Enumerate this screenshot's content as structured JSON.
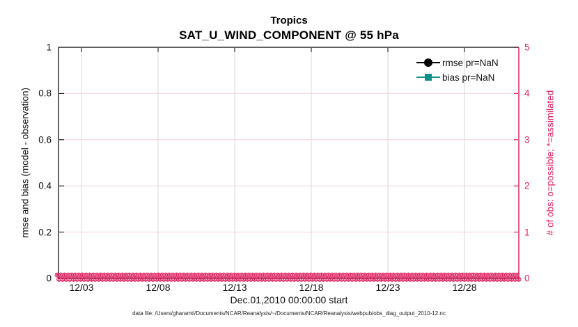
{
  "colors": {
    "accent_pink": "#de2363",
    "grid_pink": "#f6d3e1",
    "grid_gray": "#d8d8d8",
    "rmse_black": "#000000",
    "bias_teal": "#0f9088"
  },
  "title": {
    "line1": "Tropics",
    "line2": "SAT_U_WIND_COMPONENT @ 55 hPa"
  },
  "axes": {
    "left": {
      "label": "rmse and bias (model - observation)",
      "ticks": [
        "1",
        "0.8",
        "0.6",
        "0.4",
        "0.2",
        "0"
      ]
    },
    "right": {
      "label": "# of obs: o=possible; *=assimilated",
      "ticks": [
        "5",
        "4",
        "3",
        "2",
        "1",
        "0"
      ]
    },
    "x": {
      "ticks": [
        "12/03",
        "12/08",
        "12/13",
        "12/18",
        "12/23",
        "12/28"
      ],
      "label": "Dec.01,2010 00:00:00 start"
    }
  },
  "legend": {
    "items": [
      {
        "label": "rmse pr=NaN",
        "marker": "filled-circle",
        "color": "#000000"
      },
      {
        "label": "bias pr=NaN",
        "marker": "filled-square",
        "color": "#0f9088"
      }
    ]
  },
  "footer": {
    "data_file": "data file: /Users/gharamti/Documents/NCAR/Reanalysis/~/Documents/NCAR/Reanalysis/webpub/obs_diag_output_2010-12.nc"
  },
  "chart_data": {
    "type": "line",
    "title": "Tropics",
    "subtitle": "SAT_U_WIND_COMPONENT @ 55 hPa",
    "xlabel": "Dec.01,2010 00:00:00 start",
    "x_tick_labels": [
      "12/03",
      "12/08",
      "12/13",
      "12/18",
      "12/23",
      "12/28"
    ],
    "x_range": [
      "2010-12-01 00:00:00",
      "2010-12-31"
    ],
    "left_axis": {
      "label": "rmse and bias (model - observation)",
      "ylim": [
        0,
        1
      ],
      "tick_step": 0.2
    },
    "right_axis": {
      "label": "# of obs: o=possible; *=assimilated",
      "ylim": [
        0,
        5
      ],
      "tick_step": 1,
      "color": "#de2363"
    },
    "grid": true,
    "legend_position": "top-right-inside, no box",
    "series": [
      {
        "name": "rmse pr=NaN",
        "axis": "left",
        "marker": "filled-circle",
        "color": "#000000",
        "values": "all NaN - no line drawn"
      },
      {
        "name": "bias pr=NaN",
        "axis": "left",
        "marker": "filled-square",
        "color": "#0f9088",
        "values": "all NaN - no line drawn"
      },
      {
        "name": "# of obs possible (o)",
        "axis": "right",
        "marker": "o",
        "color": "#de2363",
        "constant_value": 0,
        "note": "dense markers at y=0 across entire December 2010 time range"
      },
      {
        "name": "# of obs assimilated (*)",
        "axis": "right",
        "marker": "*",
        "color": "#de2363",
        "constant_value": 0,
        "note": "dense markers at y=0 across entire December 2010 time range"
      }
    ]
  }
}
